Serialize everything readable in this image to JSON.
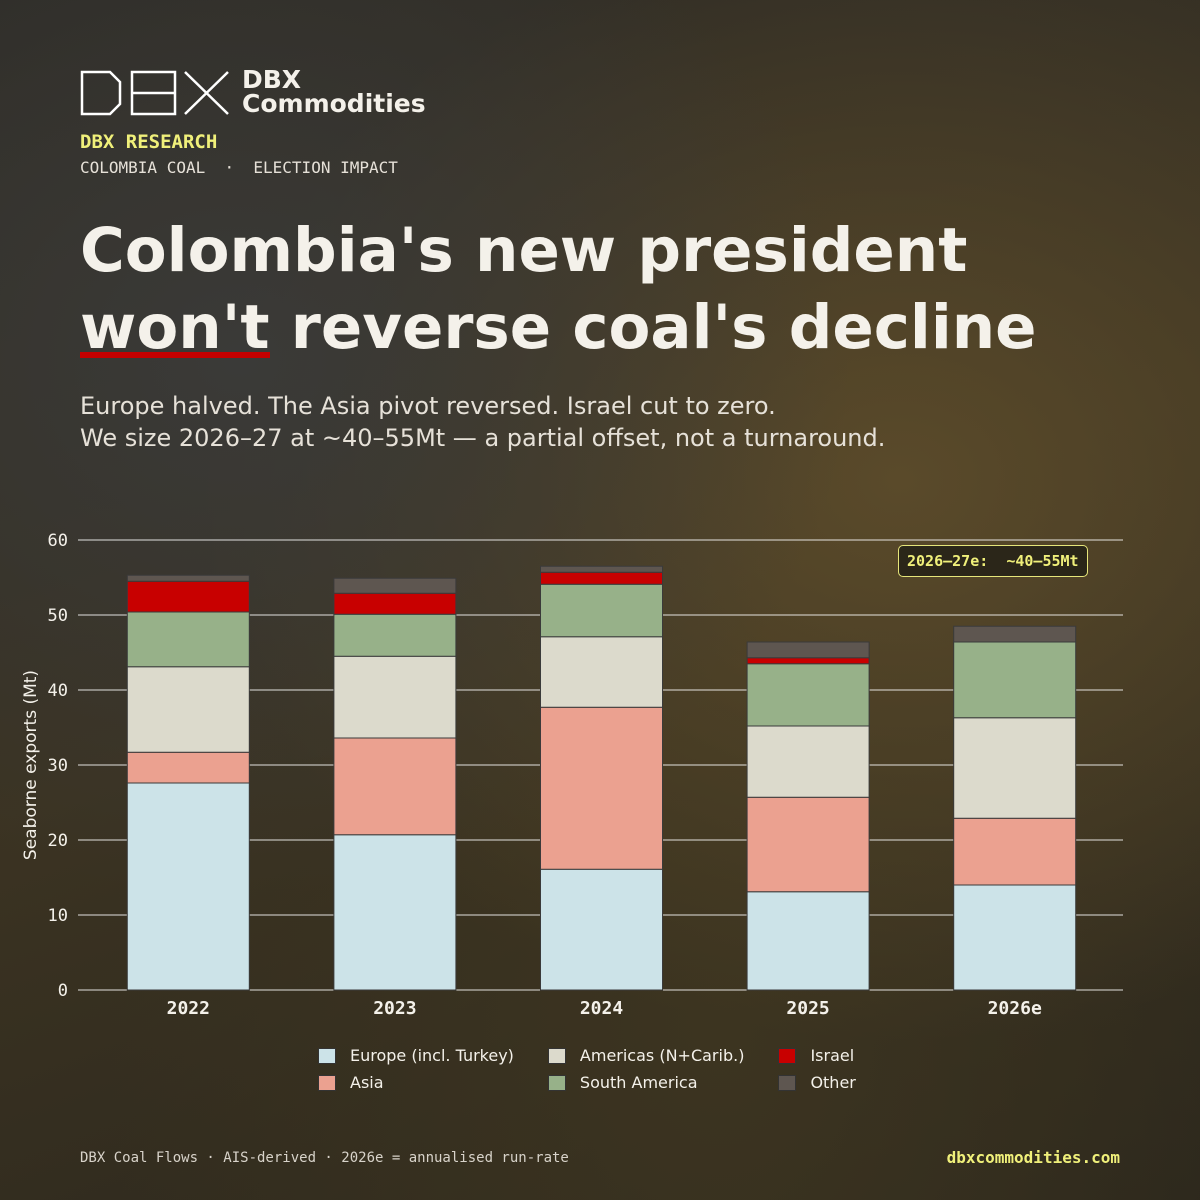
{
  "brand": {
    "short": "DBX",
    "name": "Commodities",
    "research": "DBX RESEARCH",
    "tagline": "COLOMBIA COAL  ·  ELECTION IMPACT"
  },
  "chart_data": {
    "type": "stacked_bar",
    "title": "Colombia's new president won't reverse coal's decline",
    "subtitle_lines": [
      "Europe halved. The Asia pivot reversed. Israel cut to zero.",
      "We size 2026–27 at ~40–55Mt — a partial offset, not a turnaround."
    ],
    "y_label": "Seaborne exports (Mt)",
    "annotation": "2026–27e:  ~40–55Mt",
    "categories": [
      "2022",
      "2023",
      "2024",
      "2025",
      "2026e"
    ],
    "series": [
      {
        "name": "Europe (incl. Turkey)",
        "color": "#cce3e8",
        "values": [
          27.6,
          20.7,
          16.1,
          13.1,
          14.0
        ]
      },
      {
        "name": "Asia",
        "color": "#eba190",
        "values": [
          4.1,
          12.9,
          21.6,
          12.6,
          8.9
        ]
      },
      {
        "name": "Americas (N+Carib.)",
        "color": "#dcdacc",
        "values": [
          11.4,
          10.9,
          9.4,
          9.5,
          13.4
        ]
      },
      {
        "name": "South America",
        "color": "#97b189",
        "values": [
          7.3,
          5.6,
          7.0,
          8.3,
          10.1
        ]
      },
      {
        "name": "Israel",
        "color": "#c80000",
        "values": [
          4.1,
          2.8,
          1.6,
          0.8,
          0
        ]
      },
      {
        "name": "Other",
        "color": "#5e5650",
        "values": [
          0.8,
          2.0,
          0.8,
          2.1,
          2.1
        ]
      }
    ],
    "ylim": [
      0,
      60
    ],
    "yticks": [
      0,
      10,
      20,
      30,
      40,
      50,
      60
    ],
    "grid": true,
    "footer": "DBX Coal Flows · AIS-derived · 2026e = annualised run-rate",
    "source_url": "dbxcommodities.com"
  }
}
